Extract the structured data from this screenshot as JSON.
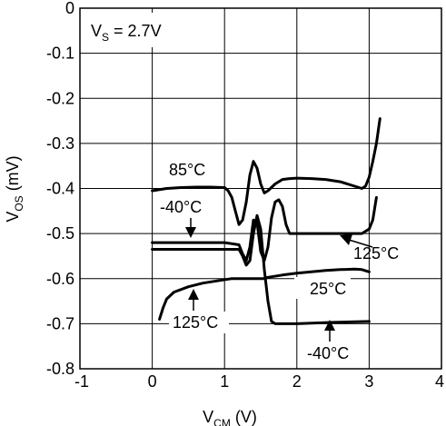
{
  "chart_data": {
    "type": "line",
    "xlabel": "V",
    "xlabel_sub": "CM",
    "xlabel_unit": " (V)",
    "ylabel": "V",
    "ylabel_sub": "OS",
    "ylabel_unit": " (mV)",
    "xlim": [
      -1,
      4
    ],
    "ylim": [
      -0.8,
      0
    ],
    "xticks": [
      -1,
      0,
      1,
      2,
      3,
      4
    ],
    "yticks": [
      0,
      -0.1,
      -0.2,
      -0.3,
      -0.4,
      -0.5,
      -0.6,
      -0.7,
      -0.8
    ],
    "xtick_labels": [
      "-1",
      "0",
      "1",
      "2",
      "3",
      "4"
    ],
    "ytick_labels": [
      "0",
      "-0.1",
      "-0.2",
      "-0.3",
      "-0.4",
      "-0.5",
      "-0.6",
      "-0.7",
      "-0.8"
    ],
    "grid": true,
    "condition_label": {
      "main": "V",
      "sub": "S",
      "rest": " = 2.7V"
    },
    "series": [
      {
        "curve_id": "s85",
        "name": "85°C",
        "x": [
          0.0,
          0.2,
          0.4,
          0.6,
          0.8,
          1.0,
          1.05,
          1.1,
          1.15,
          1.2,
          1.25,
          1.3,
          1.35,
          1.4,
          1.45,
          1.5,
          1.55,
          1.6,
          1.7,
          1.8,
          1.9,
          2.0,
          2.2,
          2.4,
          2.6,
          2.8,
          2.9,
          2.95,
          3.0,
          3.05,
          3.1,
          3.15
        ],
        "y": [
          -0.405,
          -0.4,
          -0.398,
          -0.397,
          -0.397,
          -0.398,
          -0.405,
          -0.42,
          -0.45,
          -0.48,
          -0.47,
          -0.43,
          -0.37,
          -0.34,
          -0.355,
          -0.39,
          -0.41,
          -0.405,
          -0.39,
          -0.38,
          -0.378,
          -0.377,
          -0.378,
          -0.38,
          -0.385,
          -0.395,
          -0.4,
          -0.395,
          -0.375,
          -0.34,
          -0.3,
          -0.245
        ]
      },
      {
        "curve_id": "s125",
        "name": "125°C",
        "x": [
          0.0,
          0.5,
          1.0,
          1.2,
          1.25,
          1.3,
          1.35,
          1.4,
          1.45,
          1.5,
          1.55,
          1.6,
          1.65,
          1.7,
          1.75,
          1.8,
          1.85,
          1.9,
          1.95,
          2.0,
          2.2,
          2.5,
          2.8,
          2.9,
          3.0,
          3.05,
          3.1
        ],
        "y": [
          -0.52,
          -0.52,
          -0.52,
          -0.525,
          -0.545,
          -0.56,
          -0.53,
          -0.47,
          -0.475,
          -0.54,
          -0.56,
          -0.53,
          -0.465,
          -0.43,
          -0.425,
          -0.44,
          -0.48,
          -0.5,
          -0.5,
          -0.5,
          -0.5,
          -0.5,
          -0.5,
          -0.5,
          -0.49,
          -0.47,
          -0.42
        ]
      },
      {
        "curve_id": "s40",
        "name": "-40°C",
        "x": [
          0.0,
          0.5,
          1.0,
          1.2,
          1.25,
          1.3,
          1.35,
          1.4,
          1.45,
          1.5,
          1.55,
          1.6,
          1.65,
          1.7,
          1.8,
          2.0,
          2.5,
          3.0
        ],
        "y": [
          -0.535,
          -0.535,
          -0.535,
          -0.535,
          -0.55,
          -0.57,
          -0.56,
          -0.5,
          -0.46,
          -0.49,
          -0.58,
          -0.65,
          -0.695,
          -0.7,
          -0.7,
          -0.7,
          -0.697,
          -0.695
        ]
      },
      {
        "curve_id": "s25",
        "name": "25°C",
        "x": [
          0.1,
          0.15,
          0.2,
          0.3,
          0.5,
          0.7,
          0.9,
          1.1,
          1.3,
          1.45,
          1.5,
          1.55,
          1.6,
          1.8,
          2.0,
          2.2,
          2.4,
          2.6,
          2.8,
          2.9,
          3.0
        ],
        "y": [
          -0.69,
          -0.665,
          -0.645,
          -0.63,
          -0.618,
          -0.61,
          -0.605,
          -0.6,
          -0.6,
          -0.6,
          -0.6,
          -0.6,
          -0.597,
          -0.592,
          -0.588,
          -0.585,
          -0.582,
          -0.58,
          -0.579,
          -0.58,
          -0.585
        ]
      }
    ],
    "annotations": [
      {
        "text": "85°C"
      },
      {
        "text": "-40°C"
      },
      {
        "text": "125°C"
      },
      {
        "text": "25°C"
      },
      {
        "text": "125°C"
      },
      {
        "text": "-40°C"
      }
    ]
  }
}
